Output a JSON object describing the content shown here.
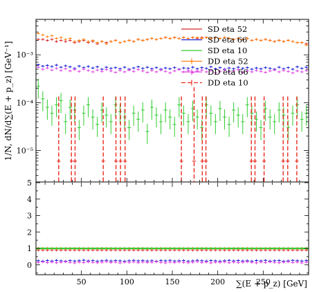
{
  "chart_data": {
    "type": "scatter",
    "x_range": [
      0,
      300
    ],
    "xlabel": "∑(E + p_z) [GeV]",
    "xticks": [
      50,
      100,
      150,
      200,
      250
    ],
    "main": {
      "ylabel": "1/N, dN/d∑(E + p_z) [GeV⁻¹]",
      "yscale": "log",
      "ylim": [
        2.2e-06,
        0.0055
      ],
      "ytick_labels": [
        "10⁻⁵",
        "10⁻⁴",
        "10⁻³"
      ],
      "ytick_values": [
        1e-05,
        0.0001,
        0.001
      ]
    },
    "ratio": {
      "ylim": [
        -0.6,
        5
      ],
      "yticks": [
        0,
        1,
        2,
        3,
        4,
        5
      ]
    },
    "x_bins": [
      2.5,
      7.5,
      12.5,
      17.5,
      22.5,
      27.5,
      32.5,
      37.5,
      42.5,
      47.5,
      52.5,
      57.5,
      62.5,
      67.5,
      72.5,
      77.5,
      82.5,
      87.5,
      92.5,
      97.5,
      102.5,
      107.5,
      112.5,
      117.5,
      122.5,
      127.5,
      132.5,
      137.5,
      142.5,
      147.5,
      152.5,
      157.5,
      162.5,
      167.5,
      172.5,
      177.5,
      182.5,
      187.5,
      192.5,
      197.5,
      202.5,
      207.5,
      212.5,
      217.5,
      222.5,
      227.5,
      232.5,
      237.5,
      242.5,
      247.5,
      252.5,
      257.5,
      262.5,
      267.5,
      272.5,
      277.5,
      282.5,
      287.5,
      292.5,
      297.5
    ],
    "series": [
      {
        "name": "SD eta 52",
        "color": "#d62728",
        "values": [
          0.0021,
          0.0021,
          0.002,
          0.0021,
          0.0019,
          0.002,
          0.0019,
          0.002,
          0.0018,
          0.0019,
          0.002,
          0.0018,
          0.0019,
          0.0017,
          0.0019,
          0.0018,
          0.0019,
          0.002,
          0.0018,
          0.0019,
          0.002,
          0.0019,
          0.0021,
          0.002,
          0.0021,
          0.0022,
          0.0021,
          0.0022,
          0.0023,
          0.0022,
          0.0023,
          0.0022,
          0.0023,
          0.0022,
          0.0023,
          0.0022,
          0.0023,
          0.0023,
          0.0022,
          0.0023,
          0.0022,
          0.0023,
          0.0022,
          0.0021,
          0.0022,
          0.0021,
          0.0022,
          0.002,
          0.0021,
          0.002,
          0.0021,
          0.002,
          0.0019,
          0.002,
          0.0019,
          0.002,
          0.0019,
          0.0018,
          0.0018,
          0.0017
        ],
        "ratio": [
          0.9,
          0.9,
          0.9,
          0.9,
          0.9,
          0.9,
          0.9,
          0.9,
          0.9,
          0.9,
          0.9,
          0.9,
          0.9,
          0.9,
          0.9,
          0.9,
          0.9,
          0.9,
          0.9,
          0.9,
          0.9,
          0.9,
          0.9,
          0.9,
          0.9,
          0.9,
          0.9,
          0.9,
          0.9,
          0.9,
          0.9,
          0.9,
          0.9,
          0.9,
          0.9,
          0.9,
          0.9,
          0.9,
          0.9,
          0.9,
          0.9,
          0.9,
          0.9,
          0.9,
          0.9,
          0.9,
          0.9,
          0.9,
          0.9,
          0.9,
          0.9,
          0.9,
          0.9,
          0.9,
          0.9,
          0.9,
          0.9,
          0.9,
          0.9,
          0.9
        ]
      },
      {
        "name": "SD eta 66",
        "color": "#1f1fd6",
        "values": [
          0.00062,
          0.00058,
          0.0006,
          0.00057,
          0.00061,
          0.00055,
          0.00059,
          0.00056,
          0.00052,
          0.00058,
          0.00054,
          0.00057,
          0.00053,
          0.00056,
          0.0005,
          0.00055,
          0.00052,
          0.00054,
          0.00051,
          0.00055,
          0.0005,
          0.00053,
          0.00056,
          0.00052,
          0.00055,
          0.00051,
          0.00054,
          0.0005,
          0.00053,
          0.00051,
          0.00054,
          0.0005,
          0.00053,
          0.00052,
          0.00055,
          0.00051,
          0.00054,
          0.00052,
          0.00056,
          0.00051,
          0.00054,
          0.0005,
          0.00053,
          0.00051,
          0.00055,
          0.00052,
          0.00054,
          0.0005,
          0.00053,
          0.00051,
          0.00054,
          0.00052,
          0.0005,
          0.00055,
          0.00051,
          0.00054,
          0.0005,
          0.00056,
          0.00052,
          0.00055
        ],
        "ratio": [
          0.25,
          0.22,
          0.26,
          0.23,
          0.27,
          0.24,
          0.22,
          0.26,
          0.23,
          0.25,
          0.28,
          0.24,
          0.26,
          0.22,
          0.25,
          0.27,
          0.23,
          0.26,
          0.24,
          0.22,
          0.25,
          0.27,
          0.24,
          0.26,
          0.23,
          0.25,
          0.22,
          0.26,
          0.24,
          0.27,
          0.23,
          0.25,
          0.26,
          0.22,
          0.24,
          0.27,
          0.25,
          0.23,
          0.26,
          0.24,
          0.22,
          0.25,
          0.27,
          0.24,
          0.26,
          0.23,
          0.25,
          0.22,
          0.26,
          0.24,
          0.27,
          0.23,
          0.25,
          0.26,
          0.22,
          0.24,
          0.27,
          0.25,
          0.23,
          0.26
        ]
      },
      {
        "name": "SD eta 10",
        "color": "#2ecc2e",
        "values": [
          0.00022,
          0.00012,
          8e-05,
          6e-05,
          9e-05,
          0.00011,
          4e-05,
          8e-05,
          7e-05,
          3e-05,
          6e-05,
          9e-05,
          5e-05,
          3.5e-05,
          7e-05,
          5.5e-05,
          4e-05,
          9e-05,
          6.5e-05,
          5e-05,
          3e-05,
          6e-05,
          4.5e-05,
          7e-05,
          2.5e-05,
          8e-05,
          5.5e-05,
          4e-05,
          7e-05,
          5e-05,
          3.5e-05,
          9e-05,
          6e-05,
          4e-05,
          7.5e-05,
          5e-05,
          3e-05,
          9e-05,
          6e-05,
          4e-05,
          7.5e-05,
          5e-05,
          3.5e-05,
          7e-05,
          5.5e-05,
          4e-05,
          9e-05,
          6e-05,
          4.5e-05,
          3e-05,
          7.5e-05,
          5e-05,
          4e-05,
          7e-05,
          5.5e-05,
          3e-05,
          6e-05,
          9e-05,
          4.5e-05,
          6e-05
        ],
        "ratio": [
          1.0,
          1.0,
          1.0,
          1.0,
          1.0,
          1.0,
          1.0,
          1.0,
          1.0,
          1.0,
          1.0,
          1.0,
          1.0,
          1.0,
          1.0,
          1.0,
          1.0,
          1.0,
          1.0,
          1.0,
          1.0,
          1.0,
          1.0,
          1.0,
          1.0,
          1.0,
          1.0,
          1.0,
          1.0,
          1.0,
          1.0,
          1.0,
          1.0,
          1.0,
          1.0,
          1.0,
          1.0,
          1.0,
          1.0,
          1.0,
          1.0,
          1.0,
          1.0,
          1.0,
          1.0,
          1.0,
          1.0,
          1.0,
          1.0,
          1.0,
          1.0,
          1.0,
          1.0,
          1.0,
          1.0,
          1.0,
          1.0,
          1.0,
          1.0,
          1.0
        ]
      },
      {
        "name": "DD eta 52",
        "color": "#ff7f0e",
        "values": [
          0.0028,
          0.0026,
          0.0024,
          0.0025,
          0.0022,
          0.0023,
          0.0021,
          0.0022,
          0.0019,
          0.002,
          0.0021,
          0.0019,
          0.002,
          0.0018,
          0.0019,
          0.0017,
          0.0019,
          0.002,
          0.0018,
          0.0019,
          0.002,
          0.0019,
          0.0021,
          0.002,
          0.0021,
          0.0022,
          0.0021,
          0.0022,
          0.0023,
          0.0022,
          0.0023,
          0.0022,
          0.0023,
          0.0022,
          0.0023,
          0.0023,
          0.0022,
          0.0023,
          0.0022,
          0.0023,
          0.0022,
          0.0023,
          0.0022,
          0.0021,
          0.0022,
          0.0021,
          0.0022,
          0.002,
          0.0021,
          0.002,
          0.0021,
          0.002,
          0.0019,
          0.002,
          0.0019,
          0.002,
          0.0019,
          0.0018,
          0.0018,
          0.0016
        ],
        "ratio": [
          1.0,
          1.0,
          1.0,
          1.0,
          1.0,
          1.0,
          1.0,
          1.0,
          1.0,
          1.0,
          1.0,
          1.0,
          1.0,
          1.0,
          1.0,
          1.0,
          1.0,
          1.0,
          1.0,
          1.0,
          1.0,
          1.0,
          1.0,
          1.0,
          1.0,
          1.0,
          1.0,
          1.0,
          1.0,
          1.0,
          1.0,
          1.0,
          1.0,
          1.0,
          1.0,
          1.0,
          1.0,
          1.0,
          1.0,
          1.0,
          1.0,
          1.0,
          1.0,
          1.0,
          1.0,
          1.0,
          1.0,
          1.0,
          1.0,
          1.0,
          1.0,
          1.0,
          1.0,
          1.0,
          1.0,
          1.0,
          1.0,
          1.0,
          1.0,
          1.0
        ]
      },
      {
        "name": "DD eta 66",
        "color": "#e040e0",
        "values": [
          0.00055,
          0.0005,
          0.00053,
          0.00048,
          0.00052,
          0.00047,
          0.00051,
          0.00046,
          0.00049,
          0.00045,
          0.0005,
          0.00047,
          0.00044,
          0.00048,
          0.00045,
          0.00049,
          0.00046,
          0.00043,
          0.00047,
          0.00044,
          0.00048,
          0.00045,
          0.00049,
          0.00046,
          0.00043,
          0.00047,
          0.00044,
          0.00048,
          0.00045,
          0.00042,
          0.00046,
          0.00049,
          0.00044,
          0.00047,
          0.00043,
          0.00046,
          0.00048,
          0.00044,
          0.00047,
          0.00042,
          0.00045,
          0.00048,
          0.00044,
          0.00046,
          0.00049,
          0.00043,
          0.00046,
          0.00044,
          0.00047,
          0.00045,
          0.00043,
          0.00046,
          0.00048,
          0.00044,
          0.00047,
          0.00045,
          0.00042,
          0.00046,
          0.00044,
          0.00047
        ],
        "ratio": [
          0.15,
          0.18,
          0.14,
          0.17,
          0.13,
          0.16,
          0.19,
          0.15,
          0.12,
          0.17,
          0.14,
          0.18,
          0.15,
          0.13,
          0.16,
          0.19,
          0.14,
          0.17,
          0.12,
          0.16,
          0.15,
          0.18,
          0.13,
          0.17,
          0.14,
          0.16,
          0.19,
          0.15,
          0.12,
          0.17,
          0.14,
          0.18,
          0.15,
          0.13,
          0.16,
          0.19,
          0.14,
          0.17,
          0.12,
          0.16,
          0.15,
          0.18,
          0.13,
          0.17,
          0.14,
          0.16,
          0.19,
          0.15,
          0.12,
          0.17,
          0.14,
          0.18,
          0.15,
          0.13,
          0.16,
          0.19,
          0.14,
          0.17,
          0.12,
          0.16
        ]
      },
      {
        "name": "DD eta 10",
        "color": "#e8281c",
        "dashed": true,
        "points": [
          {
            "x": 25,
            "y": 6e-06,
            "ylo": 2.1e-06,
            "yhi": 0.000135
          },
          {
            "x": 39,
            "y": 6e-06,
            "ylo": 2.1e-06,
            "yhi": 0.000135
          },
          {
            "x": 43,
            "y": 6e-06,
            "ylo": 2.1e-06,
            "yhi": 0.000135
          },
          {
            "x": 74,
            "y": 6e-06,
            "ylo": 2.1e-06,
            "yhi": 0.000135
          },
          {
            "x": 88,
            "y": 6e-06,
            "ylo": 2.1e-06,
            "yhi": 0.000135
          },
          {
            "x": 93,
            "y": 6e-06,
            "ylo": 2.1e-06,
            "yhi": 0.000135
          },
          {
            "x": 98,
            "y": 6e-06,
            "ylo": 2.1e-06,
            "yhi": 0.000135
          },
          {
            "x": 160,
            "y": 6e-06,
            "ylo": 2.1e-06,
            "yhi": 0.000135
          },
          {
            "x": 174,
            "y": 6e-06,
            "ylo": 2.1e-06,
            "yhi": 0.00021
          },
          {
            "x": 183,
            "y": 6e-06,
            "ylo": 2.1e-06,
            "yhi": 0.000135
          },
          {
            "x": 187,
            "y": 6e-06,
            "ylo": 2.1e-06,
            "yhi": 0.000135
          },
          {
            "x": 237,
            "y": 6e-06,
            "ylo": 2.1e-06,
            "yhi": 0.000135
          },
          {
            "x": 241,
            "y": 6e-06,
            "ylo": 2.1e-06,
            "yhi": 0.000135
          },
          {
            "x": 251,
            "y": 6e-06,
            "ylo": 2.1e-06,
            "yhi": 0.000135
          },
          {
            "x": 272,
            "y": 6e-06,
            "ylo": 2.1e-06,
            "yhi": 0.000135
          },
          {
            "x": 277,
            "y": 6e-06,
            "ylo": 2.1e-06,
            "yhi": 0.000135
          },
          {
            "x": 287,
            "y": 6e-06,
            "ylo": 2.1e-06,
            "yhi": 0.000135
          }
        ]
      }
    ],
    "legend": {
      "placement": "top-right",
      "entries": [
        "SD eta 52",
        "SD eta 66",
        "SD eta 10",
        "DD eta 52",
        "DD eta 66",
        "DD eta 10"
      ]
    }
  }
}
